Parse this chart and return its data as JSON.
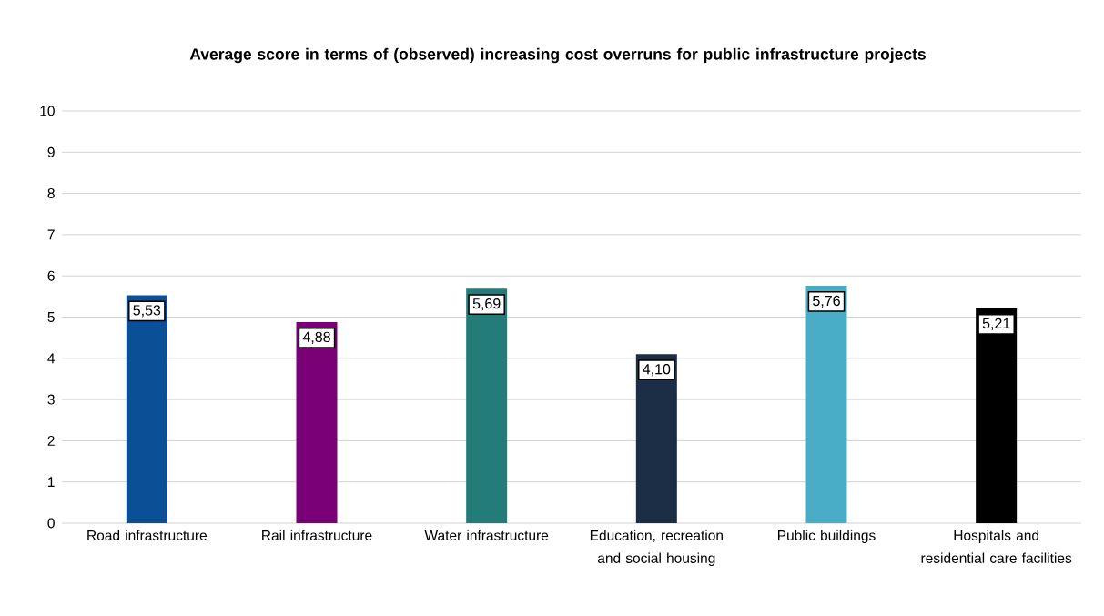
{
  "chart_data": {
    "type": "bar",
    "title": "Average score in terms of (observed) increasing cost overruns for public infrastructure projects",
    "categories": [
      "Road infrastructure",
      "Rail infrastructure",
      "Water infrastructure",
      "Education, recreation and social housing",
      "Public buildings",
      "Hospitals and residential care facilities"
    ],
    "values": [
      5.53,
      4.88,
      5.69,
      4.1,
      5.76,
      5.21
    ],
    "value_labels": [
      "5,53",
      "4,88",
      "5,69",
      "4,10",
      "5,76",
      "5,21"
    ],
    "colors": [
      "#0b4f97",
      "#790076",
      "#237c78",
      "#1b2e45",
      "#4aadc7",
      "#000000"
    ],
    "ylim": [
      0,
      10
    ],
    "yticks": [
      0,
      1,
      2,
      3,
      4,
      5,
      6,
      7,
      8,
      9,
      10
    ],
    "grid": "y"
  }
}
